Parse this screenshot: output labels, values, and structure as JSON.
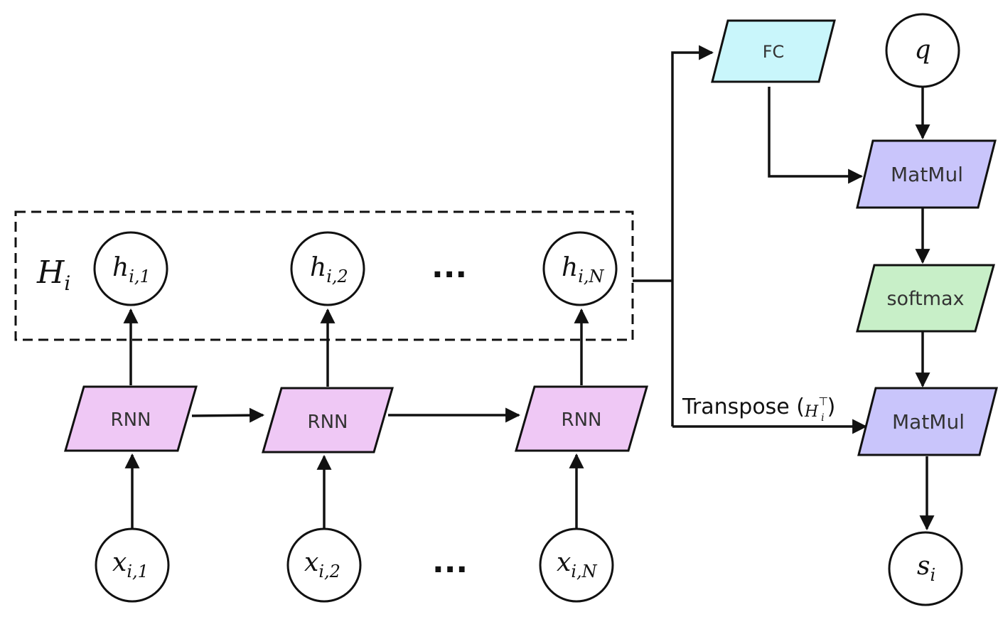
{
  "hidden_group": {
    "label": "H",
    "label_sub": "i"
  },
  "hidden_states": [
    {
      "base": "h",
      "sub": "i,1"
    },
    {
      "base": "h",
      "sub": "i,2"
    },
    {
      "base": "h",
      "sub": "i,N"
    }
  ],
  "inputs": [
    {
      "base": "x",
      "sub": "i,1"
    },
    {
      "base": "x",
      "sub": "i,2"
    },
    {
      "base": "x",
      "sub": "i,N"
    }
  ],
  "ellipsis": "...",
  "rnn_label": "RNN",
  "fc_label": "FC",
  "query": {
    "base": "q"
  },
  "matmul_label": "MatMul",
  "softmax_label": "softmax",
  "transpose": {
    "text": "Transpose (",
    "math_base": "H",
    "math_sub": "i",
    "math_sup": "⊤",
    "close": ")"
  },
  "output": {
    "base": "s",
    "sub": "i"
  },
  "colors": {
    "rnn": "#efc8f5",
    "fc": "#c9f6fb",
    "matmul": "#c9c5fb",
    "softmax": "#c8efc8",
    "stroke": "#111111"
  }
}
